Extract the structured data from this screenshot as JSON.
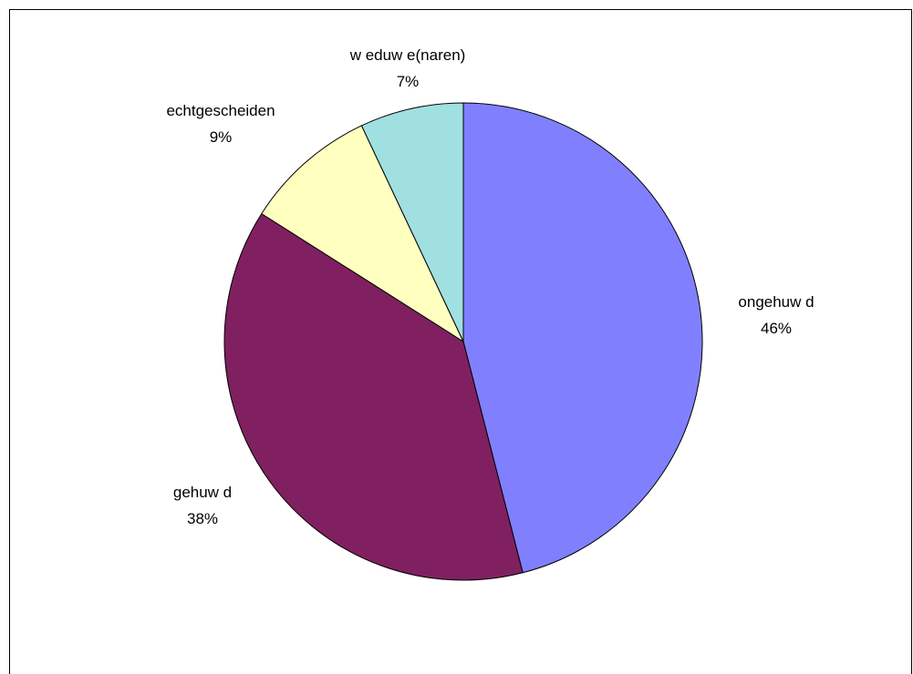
{
  "chart_data": {
    "type": "pie",
    "start": "12 o'clock",
    "direction": "clockwise",
    "slices": [
      {
        "label": "ongehuw d",
        "value": 46,
        "pct_label": "46%",
        "color": "#8080FF"
      },
      {
        "label": "gehuw d",
        "value": 38,
        "pct_label": "38%",
        "color": "#802060"
      },
      {
        "label": "echtgescheiden",
        "value": 9,
        "pct_label": "9%",
        "color": "#FFFFC0"
      },
      {
        "label": "w eduw e(naren)",
        "value": 7,
        "pct_label": "7%",
        "color": "#A0E0E0"
      }
    ]
  }
}
